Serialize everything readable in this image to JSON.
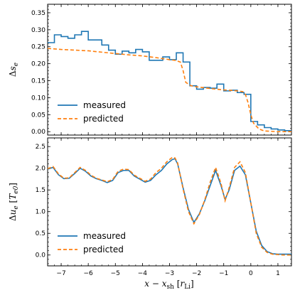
{
  "chart_data": [
    {
      "type": "line",
      "panel": "top",
      "ylabel": "Δs_e",
      "xlabel": "",
      "xlim": [
        -7.5,
        1.5
      ],
      "ylim": [
        -0.01,
        0.375
      ],
      "yticks": [
        0.0,
        0.05,
        0.1,
        0.15,
        0.2,
        0.25,
        0.3,
        0.35
      ],
      "ytick_labels": [
        "0.00",
        "0.05",
        "0.10",
        "0.15",
        "0.20",
        "0.25",
        "0.30",
        "0.35"
      ],
      "xticks": [
        -7,
        -6,
        -5,
        -4,
        -3,
        -2,
        -1,
        0,
        1
      ],
      "grid": false,
      "legend_placement": "lower-left",
      "series": [
        {
          "name": "measured",
          "style": "steps",
          "color": "#1f77b4",
          "bin_edges": [
            -7.5,
            -7.25,
            -7.0,
            -6.75,
            -6.5,
            -6.25,
            -6.0,
            -5.75,
            -5.5,
            -5.25,
            -5.0,
            -4.75,
            -4.5,
            -4.25,
            -4.0,
            -3.75,
            -3.5,
            -3.25,
            -3.0,
            -2.75,
            -2.5,
            -2.25,
            -2.0,
            -1.75,
            -1.5,
            -1.25,
            -1.0,
            -0.75,
            -0.5,
            -0.25,
            0.0,
            0.25,
            0.5,
            0.75,
            1.0,
            1.25,
            1.5
          ],
          "values": [
            0.262,
            0.285,
            0.28,
            0.275,
            0.285,
            0.295,
            0.27,
            0.27,
            0.255,
            0.24,
            0.228,
            0.237,
            0.232,
            0.242,
            0.235,
            0.21,
            0.21,
            0.22,
            0.212,
            0.232,
            0.205,
            0.135,
            0.125,
            0.13,
            0.128,
            0.14,
            0.12,
            0.122,
            0.115,
            0.11,
            0.03,
            0.02,
            0.012,
            0.008,
            0.005,
            0.003
          ]
        },
        {
          "name": "predicted",
          "style": "dashed",
          "color": "#ff7f0e",
          "x": [
            -7.5,
            -7.0,
            -6.5,
            -6.0,
            -5.5,
            -5.0,
            -4.5,
            -4.0,
            -3.5,
            -3.0,
            -2.8,
            -2.6,
            -2.5,
            -2.4,
            -2.2,
            -2.0,
            -1.5,
            -1.0,
            -0.5,
            -0.3,
            -0.2,
            -0.1,
            0.0,
            0.1,
            0.3,
            0.5,
            1.0,
            1.5
          ],
          "y": [
            0.245,
            0.242,
            0.24,
            0.238,
            0.234,
            0.23,
            0.226,
            0.223,
            0.218,
            0.212,
            0.21,
            0.205,
            0.18,
            0.145,
            0.135,
            0.132,
            0.127,
            0.123,
            0.12,
            0.118,
            0.11,
            0.085,
            0.05,
            0.025,
            0.008,
            0.002,
            0.0,
            0.0
          ]
        }
      ]
    },
    {
      "type": "line",
      "panel": "bottom",
      "ylabel": "Δu_e [T_e0]",
      "xlabel": "x − x_sh [r_Li]",
      "xlim": [
        -7.5,
        1.5
      ],
      "ylim": [
        -0.25,
        2.7
      ],
      "yticks": [
        0.0,
        0.5,
        1.0,
        1.5,
        2.0,
        2.5
      ],
      "ytick_labels": [
        "0.0",
        "0.5",
        "1.0",
        "1.5",
        "2.0",
        "2.5"
      ],
      "xticks": [
        -7,
        -6,
        -5,
        -4,
        -3,
        -2,
        -1,
        0,
        1
      ],
      "xtick_labels": [
        "−7",
        "−6",
        "−5",
        "−4",
        "−3",
        "−2",
        "−1",
        "0",
        "1"
      ],
      "grid": false,
      "legend_placement": "lower-left",
      "series": [
        {
          "name": "measured",
          "style": "solid",
          "color": "#1f77b4",
          "x": [
            -7.5,
            -7.3,
            -7.1,
            -6.9,
            -6.7,
            -6.5,
            -6.3,
            -6.1,
            -5.9,
            -5.7,
            -5.5,
            -5.3,
            -5.1,
            -4.9,
            -4.7,
            -4.5,
            -4.3,
            -4.1,
            -3.9,
            -3.7,
            -3.5,
            -3.3,
            -3.1,
            -2.9,
            -2.8,
            -2.7,
            -2.5,
            -2.3,
            -2.1,
            -1.9,
            -1.7,
            -1.5,
            -1.3,
            -1.1,
            -0.95,
            -0.8,
            -0.6,
            -0.4,
            -0.2,
            0.0,
            0.2,
            0.4,
            0.6,
            0.8,
            1.0,
            1.2,
            1.5
          ],
          "y": [
            1.98,
            2.02,
            1.85,
            1.76,
            1.77,
            1.88,
            2.0,
            1.93,
            1.82,
            1.76,
            1.72,
            1.67,
            1.72,
            1.9,
            1.95,
            1.95,
            1.82,
            1.75,
            1.68,
            1.72,
            1.85,
            1.95,
            2.1,
            2.2,
            2.22,
            2.1,
            1.55,
            1.05,
            0.75,
            0.95,
            1.25,
            1.6,
            1.95,
            1.6,
            1.28,
            1.5,
            1.95,
            2.05,
            1.85,
            1.2,
            0.55,
            0.22,
            0.08,
            0.03,
            0.02,
            0.02,
            0.02
          ]
        },
        {
          "name": "predicted",
          "style": "dashed",
          "color": "#ff7f0e",
          "x": [
            -7.5,
            -7.3,
            -7.1,
            -6.9,
            -6.7,
            -6.5,
            -6.3,
            -6.1,
            -5.9,
            -5.7,
            -5.5,
            -5.3,
            -5.1,
            -4.9,
            -4.7,
            -4.5,
            -4.3,
            -4.1,
            -3.9,
            -3.7,
            -3.5,
            -3.3,
            -3.1,
            -2.9,
            -2.8,
            -2.7,
            -2.5,
            -2.3,
            -2.1,
            -1.9,
            -1.7,
            -1.5,
            -1.3,
            -1.1,
            -0.95,
            -0.8,
            -0.6,
            -0.4,
            -0.2,
            0.0,
            0.2,
            0.4,
            0.6,
            0.8,
            1.0,
            1.2,
            1.5
          ],
          "y": [
            1.99,
            2.04,
            1.87,
            1.77,
            1.78,
            1.9,
            2.02,
            1.95,
            1.84,
            1.77,
            1.73,
            1.69,
            1.74,
            1.93,
            1.98,
            1.97,
            1.84,
            1.77,
            1.7,
            1.75,
            1.9,
            2.0,
            2.15,
            2.25,
            2.24,
            2.12,
            1.52,
            1.0,
            0.72,
            0.93,
            1.27,
            1.68,
            2.02,
            1.65,
            1.25,
            1.55,
            2.02,
            2.15,
            1.9,
            1.2,
            0.5,
            0.18,
            0.06,
            0.02,
            0.01,
            0.0,
            0.0
          ]
        }
      ]
    }
  ]
}
